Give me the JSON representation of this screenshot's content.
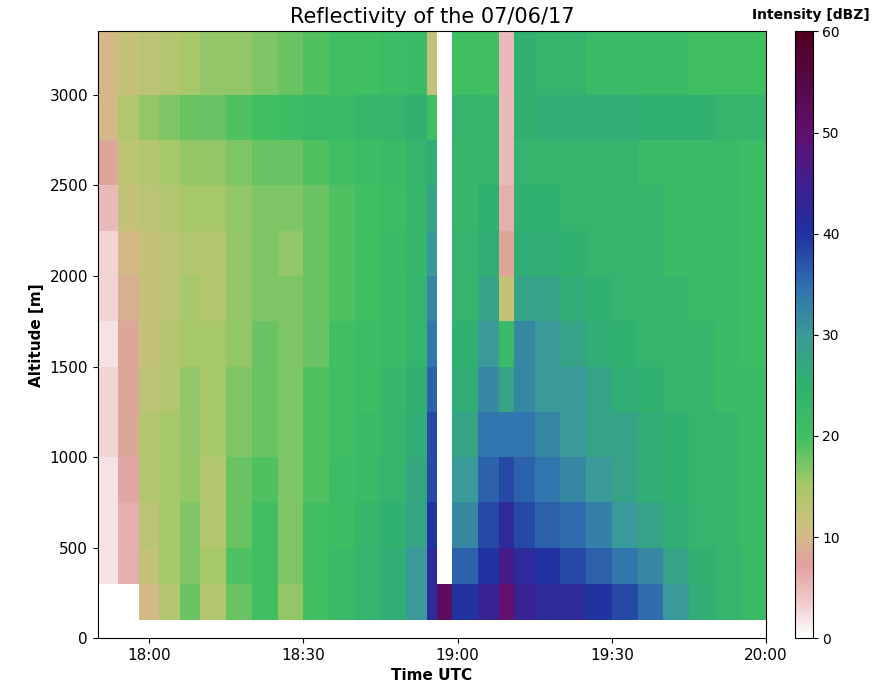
{
  "chart_data": {
    "type": "heatmap",
    "title": "Reflectivity of the 07/06/17",
    "x_label": "Time UTC",
    "y_label": "Altitude [m]",
    "xlim": [
      1070,
      1200
    ],
    "xticks": [
      {
        "value": 1080,
        "label": "18:00"
      },
      {
        "value": 1110,
        "label": "18:30"
      },
      {
        "value": 1140,
        "label": "19:00"
      },
      {
        "value": 1170,
        "label": "19:30"
      },
      {
        "value": 1200,
        "label": "20:00"
      }
    ],
    "ylim": [
      0,
      3350
    ],
    "yticks": [
      0,
      500,
      1000,
      1500,
      2000,
      2500,
      3000
    ],
    "x_edges": [
      1070,
      1074,
      1078,
      1082,
      1086,
      1090,
      1095,
      1100,
      1105,
      1110,
      1115,
      1120,
      1125,
      1130,
      1134,
      1136,
      1139,
      1144,
      1148,
      1151,
      1155,
      1160,
      1165,
      1170,
      1175,
      1180,
      1185,
      1190,
      1195,
      1200
    ],
    "y_edges": [
      100,
      300,
      500,
      750,
      1000,
      1250,
      1500,
      1750,
      2000,
      2250,
      2500,
      2750,
      3000,
      3350
    ],
    "cells": [
      [
        null,
        null,
        10,
        14,
        18,
        14,
        18,
        20,
        16,
        20,
        22,
        24,
        26,
        30,
        42,
        52,
        40,
        44,
        50,
        44,
        42,
        42,
        40,
        38,
        35,
        30,
        26,
        24,
        22
      ],
      [
        2,
        6,
        12,
        15,
        17,
        15,
        19,
        20,
        17,
        20,
        22,
        24,
        26,
        30,
        42,
        null,
        36,
        40,
        46,
        42,
        40,
        38,
        36,
        34,
        32,
        28,
        25,
        24,
        22
      ],
      [
        2,
        6,
        13,
        15,
        17,
        14,
        18,
        20,
        17,
        20,
        21,
        23,
        25,
        28,
        40,
        null,
        32,
        38,
        42,
        38,
        36,
        35,
        33,
        30,
        28,
        26,
        24,
        23,
        22
      ],
      [
        2,
        7,
        14,
        15,
        16,
        14,
        18,
        19,
        17,
        19,
        21,
        22,
        24,
        27,
        38,
        null,
        30,
        36,
        38,
        36,
        34,
        32,
        30,
        28,
        26,
        25,
        24,
        23,
        22
      ],
      [
        3,
        8,
        14,
        15,
        16,
        15,
        17,
        18,
        17,
        19,
        20,
        22,
        23,
        26,
        38,
        null,
        28,
        34,
        34,
        34,
        32,
        30,
        28,
        28,
        26,
        25,
        24,
        23,
        22
      ],
      [
        3,
        8,
        13,
        14,
        16,
        15,
        17,
        18,
        17,
        19,
        20,
        21,
        23,
        25,
        36,
        null,
        26,
        32,
        28,
        32,
        30,
        30,
        28,
        26,
        25,
        24,
        23,
        22,
        22
      ],
      [
        2,
        8,
        12,
        14,
        15,
        15,
        16,
        18,
        17,
        18,
        20,
        21,
        22,
        24,
        34,
        null,
        25,
        30,
        22,
        32,
        30,
        28,
        26,
        25,
        24,
        24,
        23,
        22,
        21
      ],
      [
        3,
        9,
        12,
        13,
        15,
        14,
        16,
        17,
        17,
        18,
        19,
        20,
        22,
        24,
        32,
        null,
        24,
        28,
        12,
        28,
        28,
        26,
        25,
        24,
        24,
        23,
        22,
        22,
        21
      ],
      [
        3,
        10,
        12,
        13,
        14,
        14,
        16,
        17,
        16,
        18,
        19,
        20,
        22,
        23,
        30,
        null,
        24,
        26,
        8,
        26,
        26,
        25,
        24,
        24,
        23,
        22,
        22,
        22,
        21
      ],
      [
        5,
        12,
        13,
        14,
        15,
        15,
        16,
        17,
        17,
        18,
        19,
        20,
        21,
        23,
        28,
        null,
        23,
        25,
        6,
        25,
        25,
        24,
        24,
        23,
        23,
        22,
        22,
        22,
        21
      ],
      [
        8,
        13,
        14,
        15,
        16,
        16,
        17,
        18,
        18,
        19,
        20,
        21,
        22,
        24,
        26,
        null,
        23,
        23,
        5,
        24,
        24,
        24,
        24,
        24,
        22,
        22,
        22,
        22,
        21
      ],
      [
        10,
        14,
        16,
        17,
        18,
        18,
        19,
        20,
        21,
        22,
        22,
        23,
        24,
        25,
        20,
        null,
        24,
        23,
        5,
        25,
        26,
        26,
        26,
        26,
        25,
        25,
        25,
        24,
        24
      ],
      [
        10,
        12,
        13,
        14,
        15,
        16,
        16,
        17,
        18,
        19,
        20,
        20,
        21,
        22,
        12,
        null,
        20,
        20,
        5,
        25,
        24,
        24,
        22,
        22,
        22,
        22,
        20,
        20,
        20
      ]
    ],
    "colorbar": {
      "label": "Intensity [dBZ]",
      "range": [
        0,
        60
      ],
      "ticks": [
        0,
        10,
        20,
        30,
        40,
        50,
        60
      ]
    }
  }
}
